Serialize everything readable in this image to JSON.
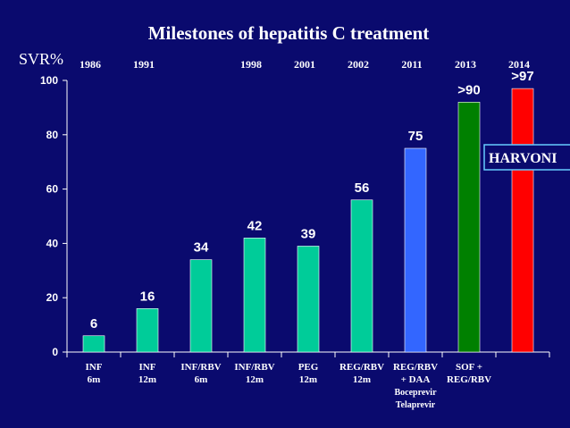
{
  "chart_data": {
    "type": "bar",
    "title": "Milestones of hepatitis C treatment",
    "ylabel": "SVR%",
    "ylim": [
      0,
      100
    ],
    "yticks": [
      0,
      20,
      40,
      60,
      80,
      100
    ],
    "categories": [
      {
        "label": [
          "INF",
          "6m"
        ],
        "year": "1986"
      },
      {
        "label": [
          "INF",
          "12m"
        ],
        "year": "1991"
      },
      {
        "label": [
          "INF/RBV",
          "6m"
        ],
        "year": ""
      },
      {
        "label": [
          "INF/RBV",
          "12m"
        ],
        "year": "1998"
      },
      {
        "label": [
          "PEG",
          "12m"
        ],
        "year": "2001"
      },
      {
        "label": [
          "REG/RBV",
          "12m"
        ],
        "year": "2002"
      },
      {
        "label": [
          "REG/RBV",
          "+ DAA",
          "Boceprevir",
          "Telaprevir"
        ],
        "year": "2011"
      },
      {
        "label": [
          "SOF +",
          "REG/RBV"
        ],
        "year": "2013"
      },
      {
        "label": [],
        "year": "2014"
      }
    ],
    "values": [
      6,
      16,
      34,
      42,
      39,
      56,
      75,
      92,
      97
    ],
    "data_labels": [
      "6",
      "16",
      "34",
      "42",
      "39",
      "56",
      "75",
      ">90",
      ">97"
    ],
    "bar_colors": [
      "#00cc99",
      "#00cc99",
      "#00cc99",
      "#00cc99",
      "#00cc99",
      "#00cc99",
      "#3366ff",
      "#008000",
      "#ff0000"
    ],
    "annotations": [
      {
        "text": "HARVONI",
        "bar_index": 8
      }
    ],
    "grid": false,
    "legend": "none"
  }
}
